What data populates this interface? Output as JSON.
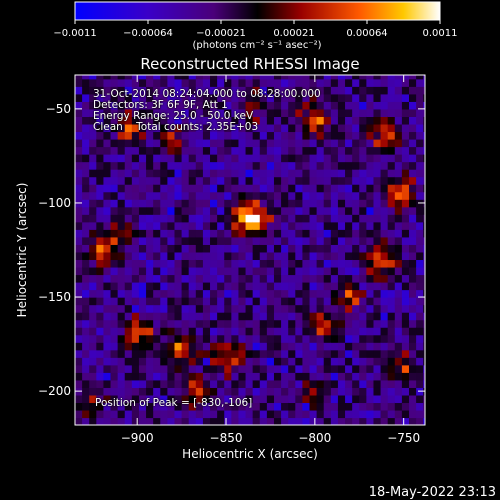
{
  "chart_data": {
    "type": "heatmap",
    "title": "Reconstructed RHESSI Image",
    "xlabel": "Heliocentric X (arcsec)",
    "ylabel": "Heliocentric Y (arcsec)",
    "xlim": [
      -935,
      -738
    ],
    "ylim": [
      -218,
      -32
    ],
    "xticks": [
      -900,
      -850,
      -800,
      -750
    ],
    "xtick_labels": [
      "-900",
      "-850",
      "-800",
      "-750"
    ],
    "yticks": [
      -50,
      -100,
      -150,
      -200
    ],
    "ytick_labels": [
      "-50",
      "-100",
      "-150",
      "-200"
    ],
    "colorbar": {
      "min": -0.0011,
      "max": 0.0011,
      "tick_labels": [
        "-0.0011",
        "-0.00064",
        "-0.00021",
        "0.00021",
        "0.00064",
        "0.0011"
      ],
      "units": "(photons cm⁻² s⁻¹ asec⁻²)"
    },
    "peak": {
      "x": -830,
      "y": -106
    },
    "sources": [
      {
        "x": -836,
        "y": -108,
        "amp": 1.0,
        "w": 6.5
      },
      {
        "x": -919,
        "y": -125,
        "amp": 0.7,
        "w": 5.5
      },
      {
        "x": -907,
        "y": -115,
        "amp": 0.45,
        "w": 5
      },
      {
        "x": -905,
        "y": -60,
        "amp": 0.55,
        "w": 6
      },
      {
        "x": -880,
        "y": -65,
        "amp": 0.4,
        "w": 5
      },
      {
        "x": -835,
        "y": -48,
        "amp": 0.42,
        "w": 5
      },
      {
        "x": -800,
        "y": -55,
        "amp": 0.55,
        "w": 6
      },
      {
        "x": -760,
        "y": -65,
        "amp": 0.5,
        "w": 6
      },
      {
        "x": -752,
        "y": -95,
        "amp": 0.55,
        "w": 6
      },
      {
        "x": -762,
        "y": -130,
        "amp": 0.6,
        "w": 6
      },
      {
        "x": -795,
        "y": -165,
        "amp": 0.65,
        "w": 5
      },
      {
        "x": -780,
        "y": -150,
        "amp": 0.5,
        "w": 5
      },
      {
        "x": -752,
        "y": -185,
        "amp": 0.45,
        "w": 6
      },
      {
        "x": -898,
        "y": -168,
        "amp": 0.55,
        "w": 6
      },
      {
        "x": -875,
        "y": -178,
        "amp": 0.6,
        "w": 6
      },
      {
        "x": -848,
        "y": -182,
        "amp": 0.5,
        "w": 6
      },
      {
        "x": -868,
        "y": -200,
        "amp": 0.45,
        "w": 6
      },
      {
        "x": -925,
        "y": -205,
        "amp": 0.35,
        "w": 5
      },
      {
        "x": -800,
        "y": -200,
        "amp": 0.3,
        "w": 5
      }
    ]
  },
  "info": {
    "time_range": "31-Oct-2014 08:24:04.000 to 08:28:00.000",
    "detectors": "Detectors: 3F 6F 9F, Att 1",
    "energy": "Energy Range: 25.0 - 50.0 keV",
    "method": "Clean    Total counts: 2.35E+03",
    "peak": "Position of Peak = [-830,-106]"
  },
  "timestamp": "18-May-2022 23:13",
  "colors": {
    "background": "#000000",
    "text": "#ffffff"
  }
}
